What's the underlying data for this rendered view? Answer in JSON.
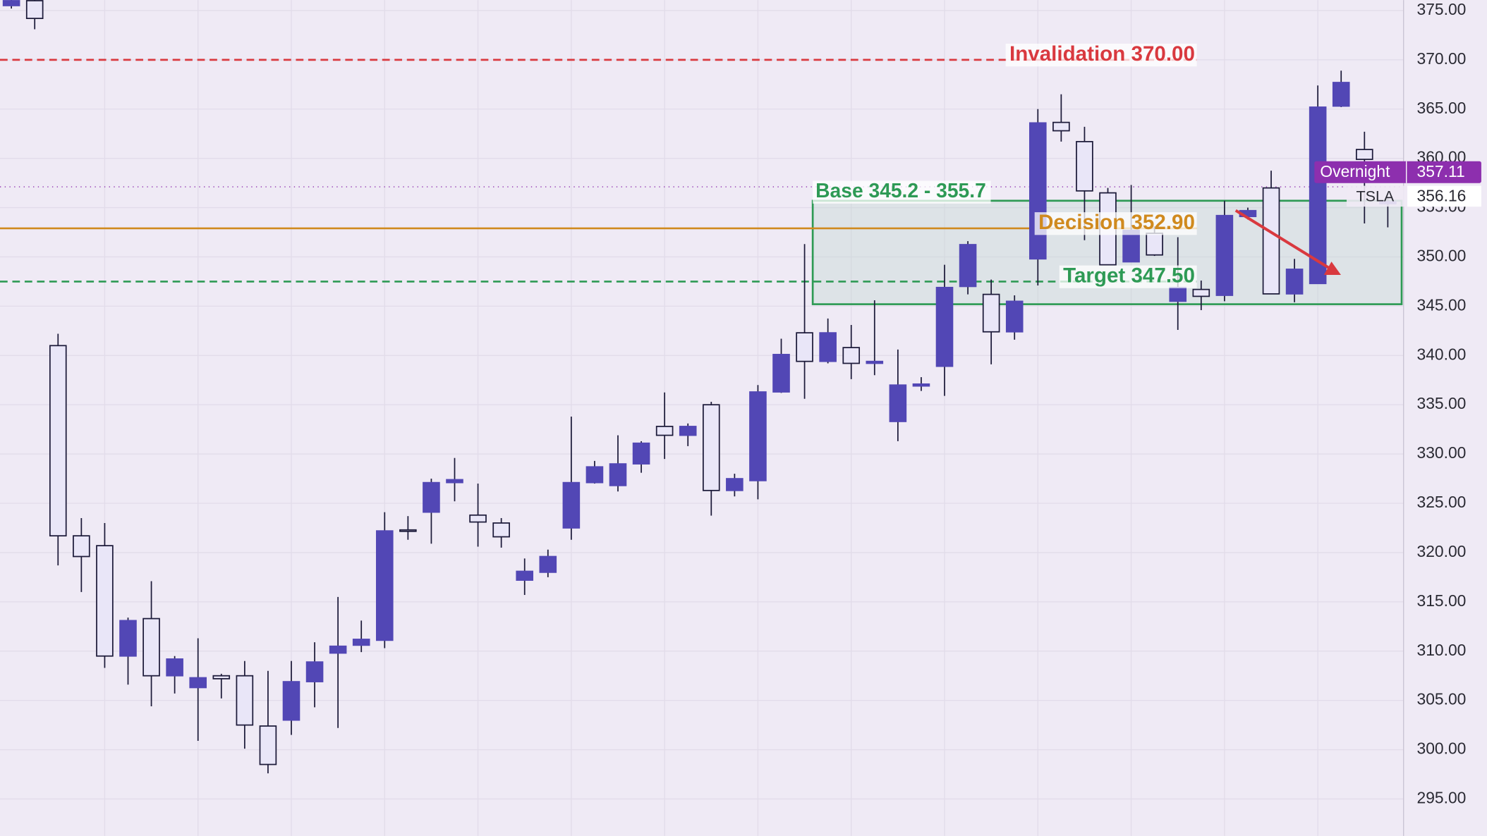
{
  "chart_data": {
    "type": "candlestick",
    "ylim": [
      291.25,
      376.06
    ],
    "yticks": [
      {
        "value": 295,
        "label": "295.00"
      },
      {
        "value": 300,
        "label": "300.00"
      },
      {
        "value": 305,
        "label": "305.00"
      },
      {
        "value": 310,
        "label": "310.00"
      },
      {
        "value": 315,
        "label": "315.00"
      },
      {
        "value": 320,
        "label": "320.00"
      },
      {
        "value": 325,
        "label": "325.00"
      },
      {
        "value": 330,
        "label": "330.00"
      },
      {
        "value": 335,
        "label": "335.00"
      },
      {
        "value": 340,
        "label": "340.00"
      },
      {
        "value": 345,
        "label": "345.00"
      },
      {
        "value": 350,
        "label": "350.00"
      },
      {
        "value": 355,
        "label": "355.00"
      },
      {
        "value": 360,
        "label": "360.00"
      },
      {
        "value": 365,
        "label": "365.00"
      },
      {
        "value": 370,
        "label": "370.00"
      },
      {
        "value": 375,
        "label": "375.00"
      }
    ],
    "grid": true,
    "up_color": "#e9e6f8",
    "down_color": "#5247b5",
    "series": {
      "open": [
        376.0,
        374.2,
        321.7,
        319.6,
        309.5,
        313.1,
        307.5,
        309.2,
        307.3,
        307.2,
        302.5,
        298.5,
        306.9,
        308.9,
        310.5,
        311.2,
        322.2,
        322.2,
        327.1,
        327.4,
        323.1,
        321.6,
        318.1,
        319.6,
        327.1,
        328.7,
        329.0,
        331.1,
        331.9,
        332.8,
        326.3,
        327.5,
        336.3,
        340.1,
        339.4,
        342.3,
        339.2,
        339.4,
        337.0,
        337.1,
        346.9,
        351.25,
        342.4,
        345.5,
        363.6,
        362.8,
        356.7,
        349.2,
        352.7,
        350.2,
        346.9,
        346.0,
        354.2,
        354.7,
        346.25,
        348.75,
        365.2,
        367.7,
        359.9,
        355.6
      ],
      "high": [
        376.1,
        376.1,
        342.2,
        323.5,
        323.0,
        313.4,
        317.1,
        309.5,
        311.3,
        307.7,
        309.0,
        308.0,
        309.0,
        310.9,
        315.5,
        313.1,
        324.1,
        323.7,
        327.5,
        329.6,
        327.0,
        323.5,
        319.4,
        320.3,
        333.8,
        329.3,
        331.9,
        331.3,
        336.25,
        333.1,
        335.3,
        328.0,
        337.0,
        341.7,
        351.3,
        343.75,
        343.1,
        345.6,
        340.6,
        337.8,
        349.2,
        351.6,
        347.7,
        346.1,
        365.0,
        366.5,
        363.2,
        357.0,
        357.3,
        353.1,
        352.0,
        347.6,
        355.7,
        355.0,
        358.75,
        349.8,
        367.4,
        368.9,
        362.7,
        356.0
      ],
      "low": [
        375.2,
        373.1,
        318.7,
        316.0,
        308.3,
        306.6,
        304.4,
        305.7,
        300.9,
        305.2,
        300.1,
        297.6,
        301.5,
        304.3,
        302.2,
        309.9,
        310.3,
        321.3,
        320.9,
        325.2,
        320.6,
        320.5,
        315.7,
        317.5,
        321.3,
        327.0,
        326.2,
        328.1,
        329.5,
        330.8,
        323.75,
        325.7,
        325.4,
        336.2,
        335.6,
        339.2,
        337.6,
        338.0,
        331.3,
        336.4,
        335.9,
        346.2,
        339.1,
        341.6,
        347.1,
        361.7,
        351.7,
        349.2,
        349.5,
        350.1,
        342.6,
        344.6,
        345.5,
        353.8,
        346.25,
        345.4,
        347.3,
        365.2,
        353.4,
        353.0
      ],
      "close": [
        375.5,
        376.0,
        341.0,
        321.7,
        320.7,
        309.5,
        313.3,
        307.5,
        306.3,
        307.5,
        307.5,
        302.4,
        303.0,
        306.9,
        309.8,
        310.6,
        311.1,
        322.3,
        324.1,
        327.1,
        323.8,
        323.0,
        317.2,
        318.0,
        322.5,
        327.1,
        326.8,
        329.0,
        332.8,
        331.9,
        335.0,
        326.3,
        327.3,
        336.3,
        342.3,
        339.4,
        340.8,
        339.2,
        333.3,
        336.9,
        338.9,
        347.0,
        346.2,
        342.4,
        349.8,
        363.65,
        361.7,
        356.5,
        349.5,
        352.4,
        345.5,
        346.7,
        346.1,
        354.1,
        357.0,
        346.25,
        347.3,
        365.3,
        360.9,
        355.4
      ]
    },
    "zone": {
      "label": "Base 345.2 - 355.7",
      "low": 345.2,
      "high": 355.7,
      "color": "#2e9a55"
    },
    "levels": [
      {
        "label": "Invalidation 370.00",
        "value": 370,
        "color": "#d9393f",
        "style": "dashed"
      },
      {
        "label": "Decision 352.90",
        "value": 352.9,
        "color": "#d08a1e",
        "style": "solid"
      },
      {
        "label": "Target 347.50",
        "value": 347.5,
        "color": "#2e9a55",
        "style": "dashed"
      }
    ],
    "price_tags": [
      {
        "name": "Overnight",
        "value": 357.11,
        "color": "#8d2fae"
      },
      {
        "name": "TSLA",
        "value": 356.16,
        "color": "#ffffff"
      }
    ]
  }
}
